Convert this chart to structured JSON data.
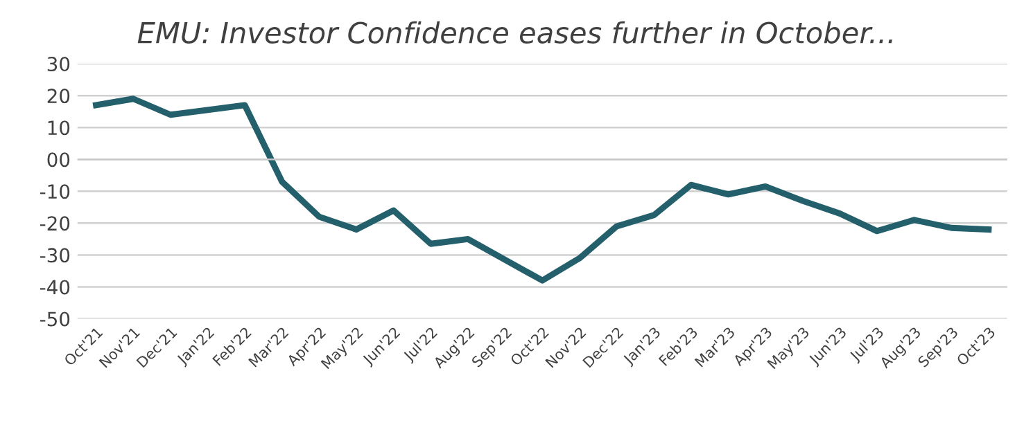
{
  "chart_data": {
    "type": "line",
    "title": "EMU: Investor Confidence eases further in October...",
    "categories": [
      "Oct'21",
      "Nov'21",
      "Dec'21",
      "Jan'22",
      "Feb'22",
      "Mar'22",
      "Apr'22",
      "May'22",
      "Jun'22",
      "Jul'22",
      "Aug'22",
      "Sep'22",
      "Oct'22",
      "Nov'22",
      "Dec'22",
      "Jan'23",
      "Feb'23",
      "Mar'23",
      "Apr'23",
      "May'23",
      "Jun'23",
      "Jul'23",
      "Aug'23",
      "Sep'23",
      "Oct'23"
    ],
    "series": [
      {
        "color": "#24606c",
        "values": [
          17,
          19,
          14,
          15.5,
          17,
          -7,
          -18,
          -22,
          -16,
          -26.5,
          -25,
          -31.5,
          -38,
          -31,
          -21,
          -17.5,
          -8,
          -11,
          -8.5,
          -13,
          -17,
          -22.5,
          -19,
          -21.5,
          -22
        ]
      }
    ],
    "ylim": [
      -50,
      30
    ],
    "yticks": [
      -50,
      -40,
      -30,
      -20,
      -10,
      {
        "value": 0,
        "label": "00"
      },
      10,
      20,
      30
    ],
    "grid": "y",
    "line_style": "solid",
    "marker": "none"
  }
}
